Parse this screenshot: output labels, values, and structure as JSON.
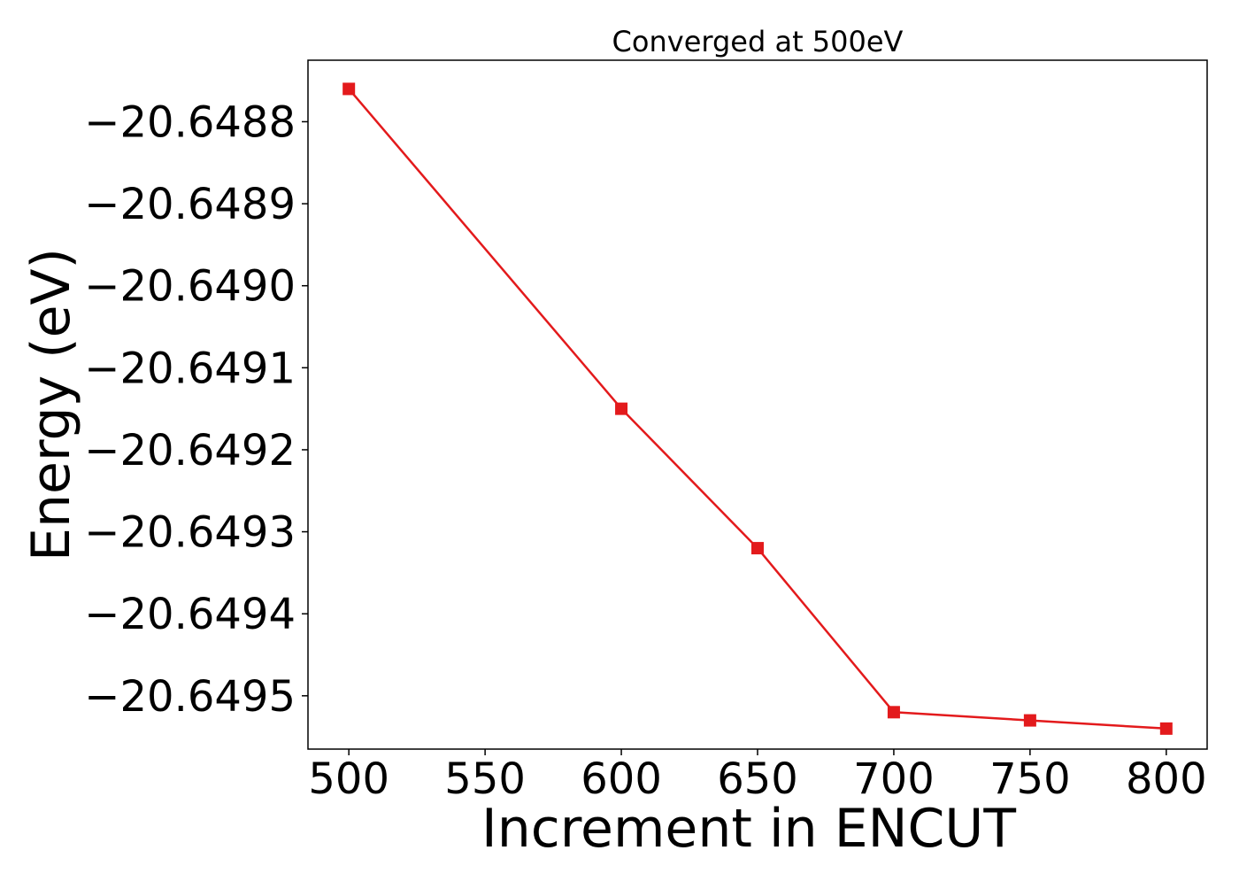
{
  "chart_data": {
    "type": "line",
    "title": "Converged at 500eV",
    "xlabel": "Increment in ENCUT",
    "ylabel": "Energy (eV)",
    "x": [
      500,
      600,
      650,
      700,
      750,
      800
    ],
    "series": [
      {
        "values": [
          -20.64876,
          -20.64915,
          -20.64932,
          -20.64952,
          -20.64953,
          -20.64954
        ],
        "color": "#e31a1c",
        "marker": "square"
      }
    ],
    "xlim": [
      485,
      815
    ],
    "ylim": [
      -20.649565,
      -20.648725
    ],
    "xticks": [
      500,
      550,
      600,
      650,
      700,
      750,
      800
    ],
    "xtick_labels": [
      "500",
      "550",
      "600",
      "650",
      "700",
      "750",
      "800"
    ],
    "yticks": [
      -20.6488,
      -20.6489,
      -20.649,
      -20.6491,
      -20.6492,
      -20.6493,
      -20.6494,
      -20.6495
    ],
    "ytick_labels": [
      "−20.6488",
      "−20.6489",
      "−20.6490",
      "−20.6491",
      "−20.6492",
      "−20.6493",
      "−20.6494",
      "−20.6495"
    ],
    "grid": false,
    "legend": "none"
  }
}
